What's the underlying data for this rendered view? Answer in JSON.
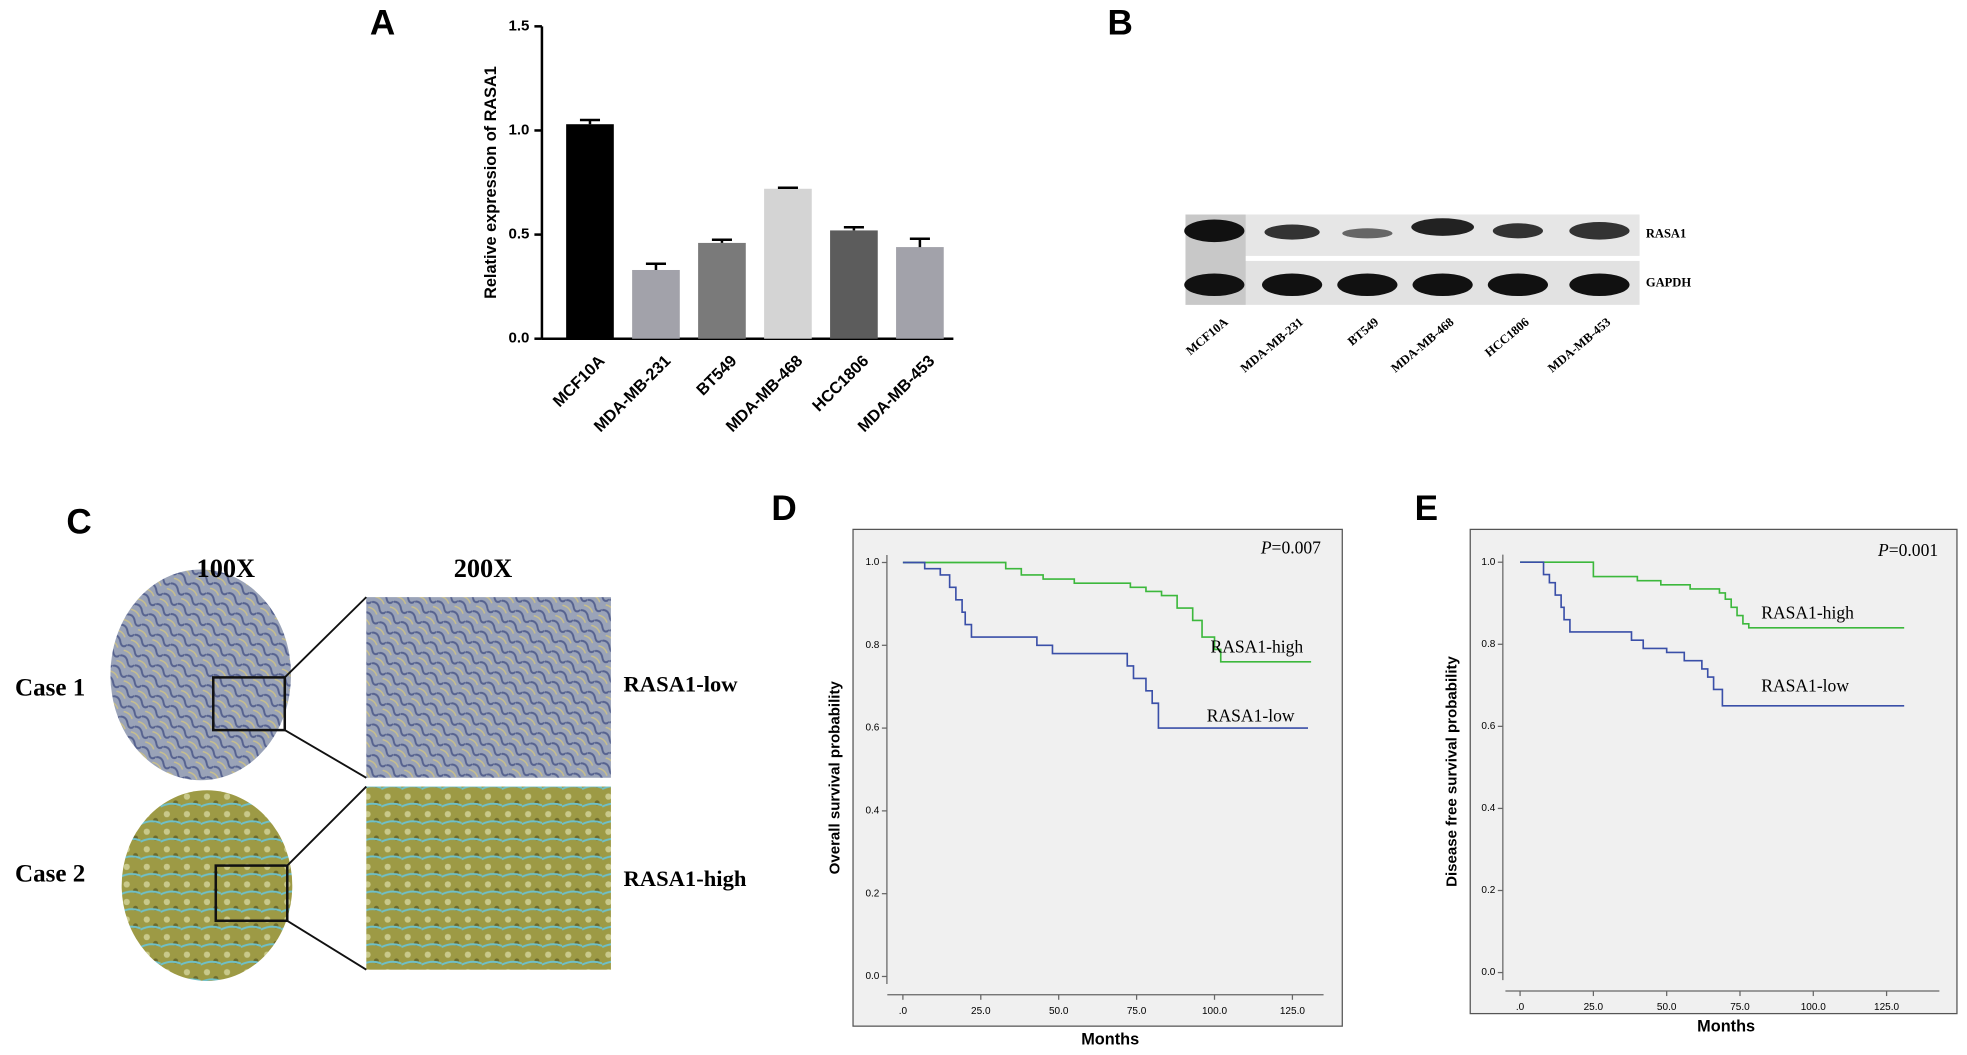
{
  "chart_data": [
    {
      "type": "bar",
      "panel_label": "A",
      "ylabel": "Relative expression of RASA1",
      "categories": [
        "MCF10A",
        "MDA-MB-231",
        "BT549",
        "MDA-MB-468",
        "HCC1806",
        "MDA-MB-453"
      ],
      "values": [
        1.03,
        0.33,
        0.46,
        0.72,
        0.52,
        0.44
      ],
      "errors": [
        0.02,
        0.03,
        0.015,
        0.005,
        0.015,
        0.04
      ],
      "colors": [
        "#000000",
        "#a2a2aa",
        "#7a7a7a",
        "#d4d4d4",
        "#5c5c5c",
        "#a2a2aa"
      ],
      "ylim": [
        0,
        1.5
      ],
      "yticks": [
        {
          "value": 0,
          "label": "0.0"
        },
        {
          "value": 0.5,
          "label": "0.5"
        },
        {
          "value": 1,
          "label": "1.0"
        },
        {
          "value": 1.5,
          "label": "1.5"
        }
      ]
    },
    {
      "type": "line",
      "panel_label": "D",
      "xlabel": "Months",
      "ylabel": "Overall survival probability",
      "p_symbol": "P",
      "p_value": "=0.007",
      "xlim": [
        -16,
        141
      ],
      "ylim": [
        -0.12,
        1.08
      ],
      "xticks": [
        {
          "value": 0,
          "label": ".0"
        },
        {
          "value": 25,
          "label": "25.0"
        },
        {
          "value": 50,
          "label": "50.0"
        },
        {
          "value": 75,
          "label": "75.0"
        },
        {
          "value": 100,
          "label": "100.0"
        },
        {
          "value": 125,
          "label": "125.0"
        }
      ],
      "yticks": [
        {
          "value": 0,
          "label": "0.0"
        },
        {
          "value": 0.2,
          "label": "0.2"
        },
        {
          "value": 0.4,
          "label": "0.4"
        },
        {
          "value": 0.6,
          "label": "0.6"
        },
        {
          "value": 0.8,
          "label": "0.8"
        },
        {
          "value": 1,
          "label": "1.0"
        }
      ],
      "series": [
        {
          "name": "RASA1-high",
          "color": "#3cb83c",
          "x": [
            0,
            33,
            33,
            38,
            38,
            45,
            45,
            55,
            55,
            73,
            73,
            78,
            78,
            83,
            83,
            88,
            88,
            93,
            93,
            96,
            96,
            100,
            100,
            102,
            102,
            131
          ],
          "values": [
            1,
            1,
            0.985,
            0.985,
            0.97,
            0.97,
            0.96,
            0.96,
            0.95,
            0.95,
            0.94,
            0.94,
            0.93,
            0.93,
            0.92,
            0.92,
            0.89,
            0.89,
            0.86,
            0.86,
            0.82,
            0.82,
            0.79,
            0.79,
            0.76,
            0.76
          ]
        },
        {
          "name": "RASA1-low",
          "color": "#3a4fa8",
          "x": [
            0,
            7,
            7,
            12,
            12,
            15,
            15,
            17,
            17,
            19,
            19,
            20,
            20,
            22,
            22,
            43,
            43,
            48,
            48,
            72,
            72,
            74,
            74,
            78,
            78,
            80,
            80,
            82,
            82,
            130
          ],
          "values": [
            1,
            1,
            0.985,
            0.985,
            0.97,
            0.97,
            0.94,
            0.94,
            0.91,
            0.91,
            0.88,
            0.88,
            0.85,
            0.85,
            0.82,
            0.82,
            0.8,
            0.8,
            0.78,
            0.78,
            0.75,
            0.75,
            0.72,
            0.72,
            0.69,
            0.69,
            0.66,
            0.66,
            0.6,
            0.6
          ]
        }
      ]
    },
    {
      "type": "line",
      "panel_label": "E",
      "xlabel": "Months",
      "ylabel": "Disease free survival probability",
      "p_symbol": "P",
      "p_value": "=0.001",
      "xlim": [
        -17,
        149
      ],
      "ylim": [
        -0.1,
        1.08
      ],
      "xticks": [
        {
          "value": 0,
          "label": ".0"
        },
        {
          "value": 25,
          "label": "25.0"
        },
        {
          "value": 50,
          "label": "50.0"
        },
        {
          "value": 75,
          "label": "75.0"
        },
        {
          "value": 100,
          "label": "100.0"
        },
        {
          "value": 125,
          "label": "125.0"
        }
      ],
      "yticks": [
        {
          "value": 0,
          "label": "0.0"
        },
        {
          "value": 0.2,
          "label": "0.2"
        },
        {
          "value": 0.4,
          "label": "0.4"
        },
        {
          "value": 0.6,
          "label": "0.6"
        },
        {
          "value": 0.8,
          "label": "0.8"
        },
        {
          "value": 1,
          "label": "1.0"
        }
      ],
      "series": [
        {
          "name": "RASA1-high",
          "color": "#3cb83c",
          "x": [
            0,
            25,
            25,
            40,
            40,
            48,
            48,
            58,
            58,
            68,
            68,
            70,
            70,
            72,
            72,
            74,
            74,
            76,
            76,
            78,
            78,
            131
          ],
          "values": [
            1,
            1,
            0.965,
            0.965,
            0.955,
            0.955,
            0.945,
            0.945,
            0.935,
            0.935,
            0.925,
            0.925,
            0.91,
            0.91,
            0.89,
            0.89,
            0.87,
            0.87,
            0.85,
            0.85,
            0.84,
            0.84
          ]
        },
        {
          "name": "RASA1-low",
          "color": "#3a4fa8",
          "x": [
            0,
            8,
            8,
            10,
            10,
            12,
            12,
            14,
            14,
            15,
            15,
            17,
            17,
            38,
            38,
            42,
            42,
            50,
            50,
            56,
            56,
            62,
            62,
            64,
            64,
            66,
            66,
            69,
            69,
            131
          ],
          "values": [
            1,
            1,
            0.97,
            0.97,
            0.95,
            0.95,
            0.92,
            0.92,
            0.89,
            0.89,
            0.86,
            0.86,
            0.83,
            0.83,
            0.81,
            0.81,
            0.79,
            0.79,
            0.78,
            0.78,
            0.76,
            0.76,
            0.74,
            0.74,
            0.72,
            0.72,
            0.69,
            0.69,
            0.65,
            0.65
          ]
        }
      ]
    }
  ],
  "blot": {
    "panel_label": "B",
    "bands": [
      "RASA1",
      "GAPDH"
    ],
    "lanes": [
      "MCF10A",
      "MDA-MB-231",
      "BT549",
      "MDA-MB-468",
      "HCC1806",
      "MDA-MB-453"
    ]
  },
  "ihc": {
    "panel_label": "C",
    "columns": [
      "100X",
      "200X"
    ],
    "rows": [
      "Case 1",
      "Case 2"
    ],
    "labels": [
      "RASA1-low",
      "RASA1-high"
    ]
  }
}
